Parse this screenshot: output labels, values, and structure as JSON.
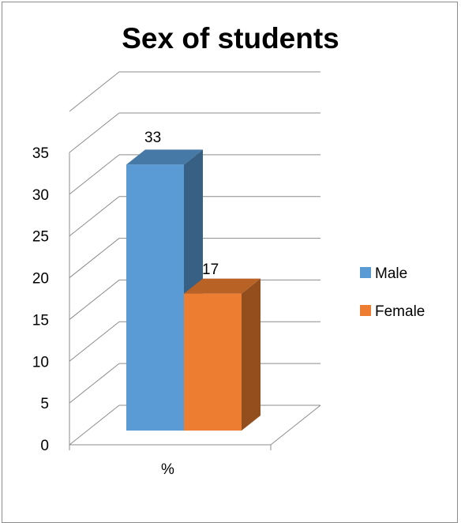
{
  "chart_data": {
    "type": "bar",
    "title": "Sex of students",
    "categories": [
      "%"
    ],
    "series": [
      {
        "name": "Male",
        "values": [
          33
        ],
        "color": "#5b9bd5"
      },
      {
        "name": "Female",
        "values": [
          17
        ],
        "color": "#ed7d31"
      }
    ],
    "ylim": [
      0,
      35
    ],
    "yticks": [
      "0",
      "5",
      "10",
      "15",
      "20",
      "25",
      "30",
      "35"
    ],
    "grid": true,
    "legend": "right",
    "style": "3d-clustered-column",
    "data_labels": [
      "33",
      "17"
    ]
  }
}
